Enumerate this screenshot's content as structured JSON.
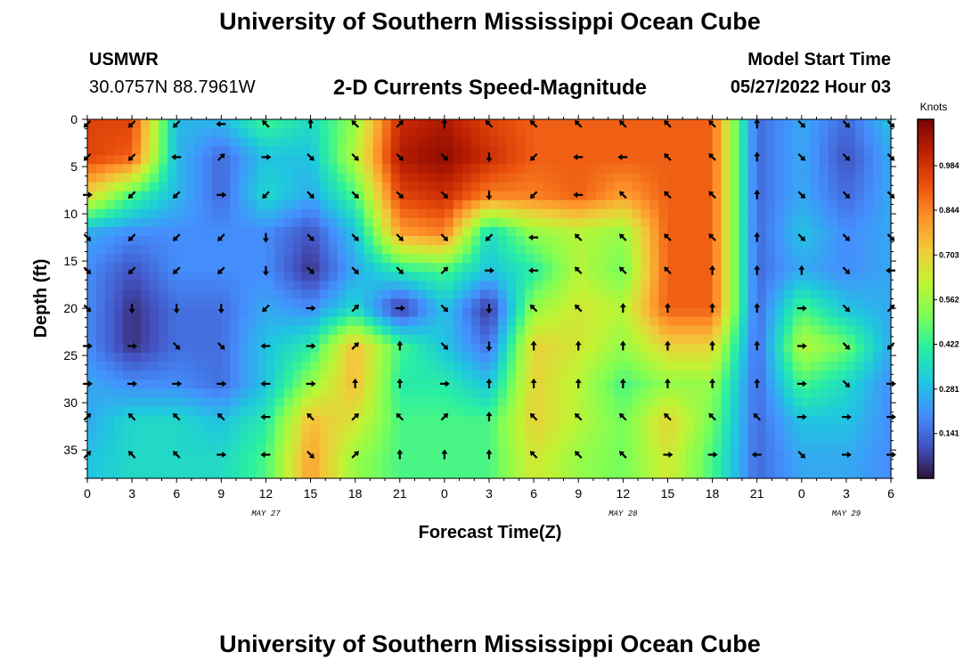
{
  "header": {
    "title": "University of Southern Mississippi Ocean Cube",
    "station": "USMWR",
    "latlon": "30.0757N  88.7961W",
    "subtitle": "2-D Currents Speed-Magnitude",
    "model_start_label": "Model Start Time",
    "model_start_value": "05/27/2022 Hour 03"
  },
  "footer": {
    "title": "University of Southern Mississippi Ocean Cube"
  },
  "colors": {
    "colormap": [
      "#30123b",
      "#4454c4",
      "#4490fe",
      "#1fc8de",
      "#29efa2",
      "#7dff56",
      "#c1f334",
      "#f1ca3a",
      "#fe922a",
      "#ea4f0d",
      "#be2102",
      "#7a0403"
    ]
  },
  "chart_data": {
    "type": "heatmap",
    "xlabel": "Forecast Time(Z)",
    "ylabel": "Depth (ft)",
    "x_tick_labels": [
      "0",
      "3",
      "6",
      "9",
      "12",
      "15",
      "18",
      "21",
      "0",
      "3",
      "6",
      "9",
      "12",
      "15",
      "18",
      "21",
      "0",
      "3",
      "6"
    ],
    "x_range_hours": [
      0,
      54
    ],
    "date_labels": [
      {
        "hour": 12,
        "text": "MAY 27"
      },
      {
        "hour": 36,
        "text": "MAY 28"
      },
      {
        "hour": 51,
        "text": "MAY 29"
      }
    ],
    "y_tick_labels": [
      "0",
      "5",
      "10",
      "15",
      "20",
      "25",
      "30",
      "35"
    ],
    "y_range_ft": [
      0,
      38
    ],
    "colorbar": {
      "unit": "Knots",
      "tick_labels": [
        "0.984",
        "0.844",
        "0.703",
        "0.562",
        "0.422",
        "0.281",
        "0.141"
      ],
      "tick_values": [
        0.984,
        0.844,
        0.703,
        0.562,
        0.422,
        0.281,
        0.141
      ],
      "range": [
        0.0,
        1.13
      ]
    },
    "field_depths_ft": [
      0,
      4,
      8,
      12,
      16,
      20,
      24,
      28,
      32,
      36
    ],
    "field_hours": [
      0,
      3,
      6,
      9,
      12,
      15,
      18,
      21,
      24,
      27,
      30,
      33,
      36,
      39,
      42,
      45,
      48,
      51,
      54
    ],
    "speed_knots": [
      [
        0.95,
        0.95,
        0.28,
        0.28,
        0.45,
        0.35,
        0.55,
        1.0,
        1.05,
        0.95,
        0.9,
        0.9,
        0.9,
        0.9,
        0.9,
        0.14,
        0.25,
        0.14,
        0.3
      ],
      [
        0.95,
        0.9,
        0.28,
        0.14,
        0.3,
        0.3,
        0.6,
        1.05,
        1.1,
        1.0,
        0.9,
        0.9,
        0.9,
        0.9,
        0.9,
        0.14,
        0.25,
        0.1,
        0.25
      ],
      [
        0.7,
        0.45,
        0.28,
        0.14,
        0.35,
        0.25,
        0.45,
        0.95,
        1.0,
        0.85,
        0.85,
        0.9,
        0.8,
        0.9,
        0.9,
        0.14,
        0.25,
        0.14,
        0.25
      ],
      [
        0.25,
        0.2,
        0.2,
        0.2,
        0.2,
        0.1,
        0.3,
        0.8,
        0.85,
        0.35,
        0.55,
        0.6,
        0.55,
        0.9,
        0.9,
        0.14,
        0.3,
        0.2,
        0.25
      ],
      [
        0.2,
        0.1,
        0.2,
        0.2,
        0.2,
        0.05,
        0.25,
        0.4,
        0.45,
        0.3,
        0.4,
        0.6,
        0.5,
        0.9,
        0.9,
        0.14,
        0.25,
        0.2,
        0.25
      ],
      [
        0.2,
        0.05,
        0.15,
        0.15,
        0.25,
        0.2,
        0.35,
        0.05,
        0.3,
        0.05,
        0.55,
        0.65,
        0.6,
        0.9,
        0.9,
        0.14,
        0.45,
        0.3,
        0.25
      ],
      [
        0.2,
        0.05,
        0.15,
        0.15,
        0.3,
        0.4,
        0.75,
        0.45,
        0.3,
        0.15,
        0.7,
        0.65,
        0.55,
        0.7,
        0.7,
        0.14,
        0.6,
        0.5,
        0.25
      ],
      [
        0.25,
        0.2,
        0.2,
        0.15,
        0.3,
        0.55,
        0.75,
        0.4,
        0.4,
        0.3,
        0.7,
        0.6,
        0.45,
        0.55,
        0.55,
        0.14,
        0.45,
        0.35,
        0.2
      ],
      [
        0.25,
        0.35,
        0.35,
        0.3,
        0.4,
        0.75,
        0.65,
        0.45,
        0.45,
        0.45,
        0.7,
        0.6,
        0.5,
        0.7,
        0.5,
        0.14,
        0.3,
        0.3,
        0.2
      ],
      [
        0.3,
        0.35,
        0.35,
        0.35,
        0.45,
        0.8,
        0.55,
        0.45,
        0.45,
        0.45,
        0.65,
        0.55,
        0.5,
        0.65,
        0.45,
        0.14,
        0.25,
        0.25,
        0.2
      ]
    ],
    "arrow_depths_ft": [
      0.5,
      4,
      8,
      12.5,
      16,
      20,
      24,
      28,
      31.5,
      35.5
    ],
    "arrow_hours": [
      0,
      3,
      6,
      9,
      12,
      15,
      18,
      21,
      24,
      27,
      30,
      33,
      36,
      39,
      42,
      45,
      48,
      51,
      54
    ],
    "arrow_direction_deg": [
      [
        225,
        225,
        225,
        270,
        315,
        0,
        315,
        45,
        0,
        315,
        315,
        315,
        315,
        315,
        315,
        0,
        135,
        135,
        135
      ],
      [
        225,
        225,
        270,
        45,
        90,
        135,
        135,
        135,
        135,
        180,
        225,
        270,
        270,
        315,
        315,
        0,
        135,
        135,
        135
      ],
      [
        90,
        225,
        225,
        90,
        225,
        135,
        135,
        135,
        135,
        180,
        225,
        270,
        315,
        315,
        315,
        0,
        135,
        135,
        135
      ],
      [
        135,
        225,
        225,
        225,
        180,
        135,
        135,
        135,
        135,
        225,
        270,
        315,
        315,
        315,
        315,
        0,
        135,
        135,
        135
      ],
      [
        135,
        225,
        225,
        225,
        180,
        135,
        135,
        135,
        45,
        90,
        270,
        315,
        315,
        315,
        0,
        0,
        0,
        135,
        270
      ],
      [
        135,
        180,
        180,
        180,
        225,
        90,
        45,
        90,
        135,
        180,
        315,
        315,
        0,
        0,
        0,
        0,
        90,
        135,
        45
      ],
      [
        90,
        90,
        135,
        135,
        270,
        90,
        45,
        0,
        135,
        180,
        0,
        0,
        0,
        0,
        0,
        0,
        90,
        135,
        225
      ],
      [
        90,
        90,
        90,
        90,
        270,
        90,
        0,
        0,
        90,
        0,
        0,
        0,
        0,
        0,
        0,
        0,
        90,
        135,
        90
      ],
      [
        45,
        315,
        315,
        315,
        270,
        315,
        45,
        315,
        45,
        0,
        315,
        315,
        315,
        315,
        315,
        315,
        90,
        90,
        90
      ],
      [
        45,
        315,
        315,
        90,
        270,
        135,
        45,
        0,
        0,
        0,
        315,
        315,
        315,
        90,
        90,
        270,
        135,
        90,
        90
      ]
    ]
  }
}
